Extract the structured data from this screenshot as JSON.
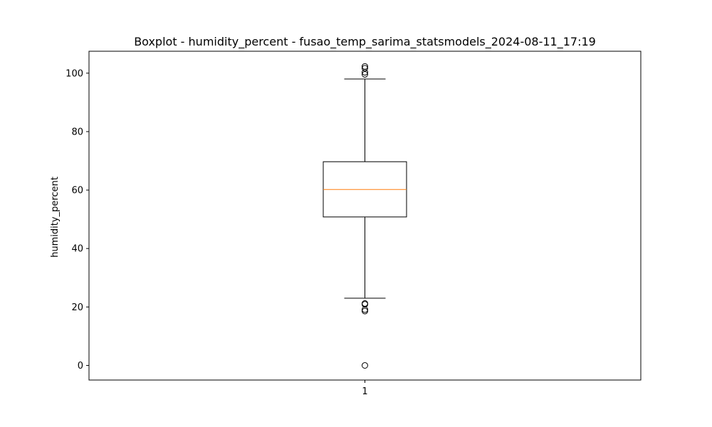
{
  "chart_data": {
    "type": "boxplot",
    "title": "Boxplot - humidity_percent - fusao_temp_sarima_statsmodels_2024-08-11_17:19",
    "xlabel": "",
    "ylabel": "humidity_percent",
    "categories": [
      "1"
    ],
    "ylim": [
      -5,
      107.5
    ],
    "yticks": [
      0,
      20,
      40,
      60,
      80,
      100
    ],
    "grid": false,
    "boxes": [
      {
        "category": "1",
        "whisker_low": 23,
        "q1": 50.8,
        "median": 60.2,
        "q3": 69.7,
        "whisker_high": 98,
        "outliers": [
          102.3,
          101.7,
          100.3,
          99.6,
          21.2,
          20.9,
          19.1,
          18.6,
          0
        ]
      }
    ],
    "colors": {
      "box": "#000000",
      "median": "#ff7f0e",
      "whisker": "#000000",
      "outlier": "#000000"
    }
  }
}
